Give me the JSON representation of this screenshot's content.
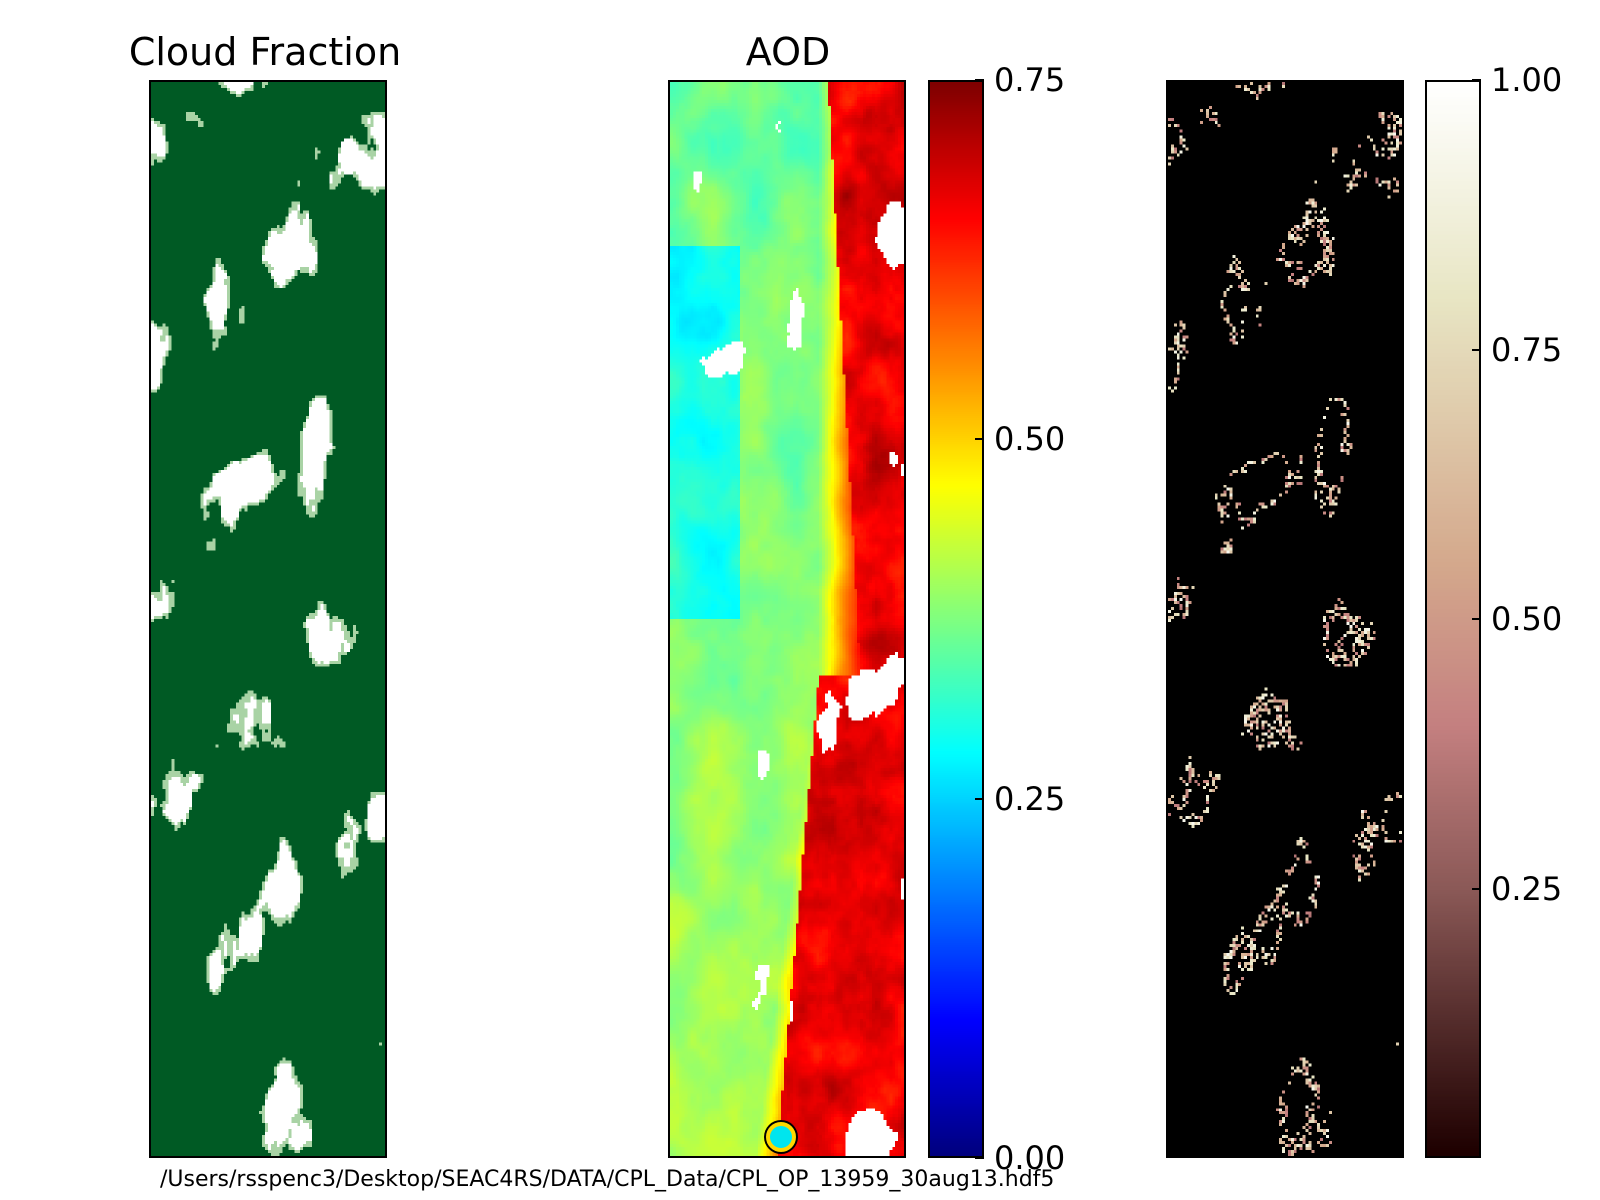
{
  "figure": {
    "filepath": "/Users/rsspenc3/Desktop/SEAC4RS/DATA/CPL_Data/CPL_OP_13959_30aug13.hdf5"
  },
  "chart_data": [
    {
      "type": "heatmap",
      "title": "Cloud Fraction",
      "colormap": [
        "#ffffff",
        "#a9d3a5",
        "#005a24"
      ],
      "colorbar": false
    },
    {
      "type": "heatmap",
      "title": "AOD",
      "colormap": "jet",
      "vmin": 0.0,
      "vmax": 0.75,
      "colorbar": true,
      "colorbar_ticks": [
        "0.75",
        "0.50",
        "0.25",
        "0.00"
      ],
      "colorbar_tick_values": [
        0.75,
        0.5,
        0.25,
        0.0
      ],
      "mask_color": "#ffffff",
      "marker": {
        "fill": "#00e5ee",
        "ring": "#ffd700"
      }
    },
    {
      "type": "heatmap",
      "title": "",
      "colormap": "pink",
      "vmin": 0.0,
      "vmax": 1.0,
      "colorbar": true,
      "colorbar_ticks": [
        "1.00",
        "0.75",
        "0.50",
        "0.25"
      ],
      "colorbar_tick_values": [
        1.0,
        0.75,
        0.5,
        0.25
      ],
      "background": "#000000"
    }
  ]
}
